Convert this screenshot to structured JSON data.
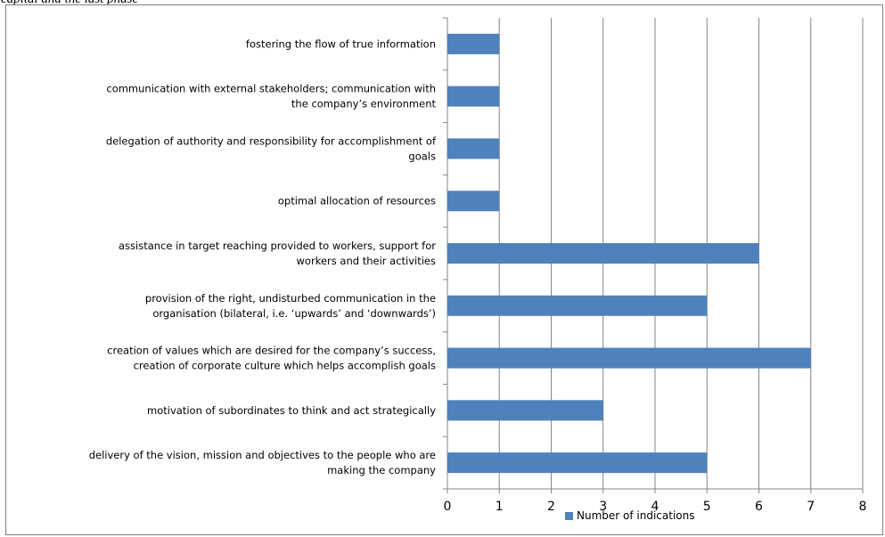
{
  "caption": "capital and the last phase",
  "chart_data": {
    "type": "bar",
    "orientation": "horizontal",
    "categories": [
      "fostering the flow of true information",
      "communication with external stakeholders; communication with the company’s environment",
      "delegation of authority and responsibility for accomplishment of goals",
      "optimal allocation of resources",
      "assistance in target reaching provided to workers, support for workers and their activities",
      "provision of the right, undisturbed communication in the organisation (bilateral, i.e. ‘upwards’ and ‘downwards’)",
      "creation of values which are desired for the company’s success, creation of corporate culture which helps accomplish goals",
      "motivation of subordinates to think and act strategically",
      "delivery of the vision, mission and objectives to the people who are making the company"
    ],
    "category_label_lines": [
      [
        "fostering the flow of true information"
      ],
      [
        "communication with external stakeholders; communication with",
        "the company’s environment"
      ],
      [
        "delegation of authority and responsibility for accomplishment of",
        "goals"
      ],
      [
        "optimal allocation of resources"
      ],
      [
        "assistance in target reaching provided to workers, support for",
        "workers and their activities"
      ],
      [
        "provision of the right, undisturbed communication in the",
        "organisation (bilateral, i.e. ‘upwards’ and ‘downwards’)"
      ],
      [
        "creation of values which are desired for the company’s success,",
        "creation of corporate culture which helps accomplish goals"
      ],
      [
        "motivation of subordinates to think and act strategically"
      ],
      [
        "delivery of the vision, mission and objectives to the people who are",
        "making the company"
      ]
    ],
    "series": [
      {
        "name": "Number of indications",
        "values": [
          1,
          1,
          1,
          1,
          6,
          5,
          7,
          3,
          5
        ],
        "color": "#4f81bd"
      }
    ],
    "xlim": [
      0,
      8
    ],
    "xticks": [
      "0",
      "1",
      "2",
      "3",
      "4",
      "5",
      "6",
      "7",
      "8"
    ],
    "grid": true,
    "legend_position": "bottom",
    "title": "",
    "xlabel": "",
    "ylabel": ""
  }
}
